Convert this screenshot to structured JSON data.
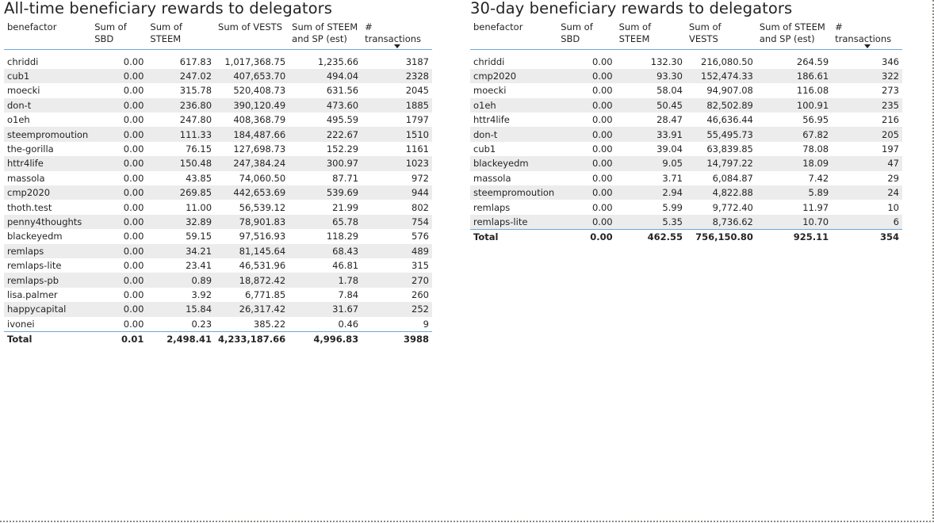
{
  "all_time": {
    "title": "All-time beneficiary rewards to delegators",
    "columns": [
      "benefactor",
      "Sum of SBD",
      "Sum of STEEM",
      "Sum of VESTS",
      "Sum of STEEM and SP (est)",
      "# transactions"
    ],
    "rows": [
      [
        "chriddi",
        "0.00",
        "617.83",
        "1,017,368.75",
        "1,235.66",
        "3187"
      ],
      [
        "cub1",
        "0.00",
        "247.02",
        "407,653.70",
        "494.04",
        "2328"
      ],
      [
        "moecki",
        "0.00",
        "315.78",
        "520,408.73",
        "631.56",
        "2045"
      ],
      [
        "don-t",
        "0.00",
        "236.80",
        "390,120.49",
        "473.60",
        "1885"
      ],
      [
        "o1eh",
        "0.00",
        "247.80",
        "408,368.79",
        "495.59",
        "1797"
      ],
      [
        "steempromoution",
        "0.00",
        "111.33",
        "184,487.66",
        "222.67",
        "1510"
      ],
      [
        "the-gorilla",
        "0.00",
        "76.15",
        "127,698.73",
        "152.29",
        "1161"
      ],
      [
        "httr4life",
        "0.00",
        "150.48",
        "247,384.24",
        "300.97",
        "1023"
      ],
      [
        "massola",
        "0.00",
        "43.85",
        "74,060.50",
        "87.71",
        "972"
      ],
      [
        "cmp2020",
        "0.00",
        "269.85",
        "442,653.69",
        "539.69",
        "944"
      ],
      [
        "thoth.test",
        "0.00",
        "11.00",
        "56,539.12",
        "21.99",
        "802"
      ],
      [
        "penny4thoughts",
        "0.00",
        "32.89",
        "78,901.83",
        "65.78",
        "754"
      ],
      [
        "blackeyedm",
        "0.00",
        "59.15",
        "97,516.93",
        "118.29",
        "576"
      ],
      [
        "remlaps",
        "0.00",
        "34.21",
        "81,145.64",
        "68.43",
        "489"
      ],
      [
        "remlaps-lite",
        "0.00",
        "23.41",
        "46,531.96",
        "46.81",
        "315"
      ],
      [
        "remlaps-pb",
        "0.00",
        "0.89",
        "18,872.42",
        "1.78",
        "270"
      ],
      [
        "lisa.palmer",
        "0.00",
        "3.92",
        "6,771.85",
        "7.84",
        "260"
      ],
      [
        "happycapital",
        "0.00",
        "15.84",
        "26,317.42",
        "31.67",
        "252"
      ],
      [
        "ivonei",
        "0.00",
        "0.23",
        "385.22",
        "0.46",
        "9"
      ]
    ],
    "total": [
      "Total",
      "0.01",
      "2,498.41",
      "4,233,187.66",
      "4,996.83",
      "3988"
    ]
  },
  "thirty_day": {
    "title": "30-day beneficiary rewards to delegators",
    "columns": [
      "benefactor",
      "Sum of SBD",
      "Sum of STEEM",
      "Sum of VESTS",
      "Sum of STEEM and SP (est)",
      "# transactions"
    ],
    "rows": [
      [
        "chriddi",
        "0.00",
        "132.30",
        "216,080.50",
        "264.59",
        "346"
      ],
      [
        "cmp2020",
        "0.00",
        "93.30",
        "152,474.33",
        "186.61",
        "322"
      ],
      [
        "moecki",
        "0.00",
        "58.04",
        "94,907.08",
        "116.08",
        "273"
      ],
      [
        "o1eh",
        "0.00",
        "50.45",
        "82,502.89",
        "100.91",
        "235"
      ],
      [
        "httr4life",
        "0.00",
        "28.47",
        "46,636.44",
        "56.95",
        "216"
      ],
      [
        "don-t",
        "0.00",
        "33.91",
        "55,495.73",
        "67.82",
        "205"
      ],
      [
        "cub1",
        "0.00",
        "39.04",
        "63,839.85",
        "78.08",
        "197"
      ],
      [
        "blackeyedm",
        "0.00",
        "9.05",
        "14,797.22",
        "18.09",
        "47"
      ],
      [
        "massola",
        "0.00",
        "3.71",
        "6,084.87",
        "7.42",
        "29"
      ],
      [
        "steempromoution",
        "0.00",
        "2.94",
        "4,822.88",
        "5.89",
        "24"
      ],
      [
        "remlaps",
        "0.00",
        "5.99",
        "9,772.40",
        "11.97",
        "10"
      ],
      [
        "remlaps-lite",
        "0.00",
        "5.35",
        "8,736.62",
        "10.70",
        "6"
      ]
    ],
    "total": [
      "Total",
      "0.00",
      "462.55",
      "756,150.80",
      "925.11",
      "354"
    ]
  },
  "sort_indicator": "descending",
  "colors": {
    "header_rule": "#6ea7dc",
    "band": "#ececec",
    "text": "#252423"
  }
}
